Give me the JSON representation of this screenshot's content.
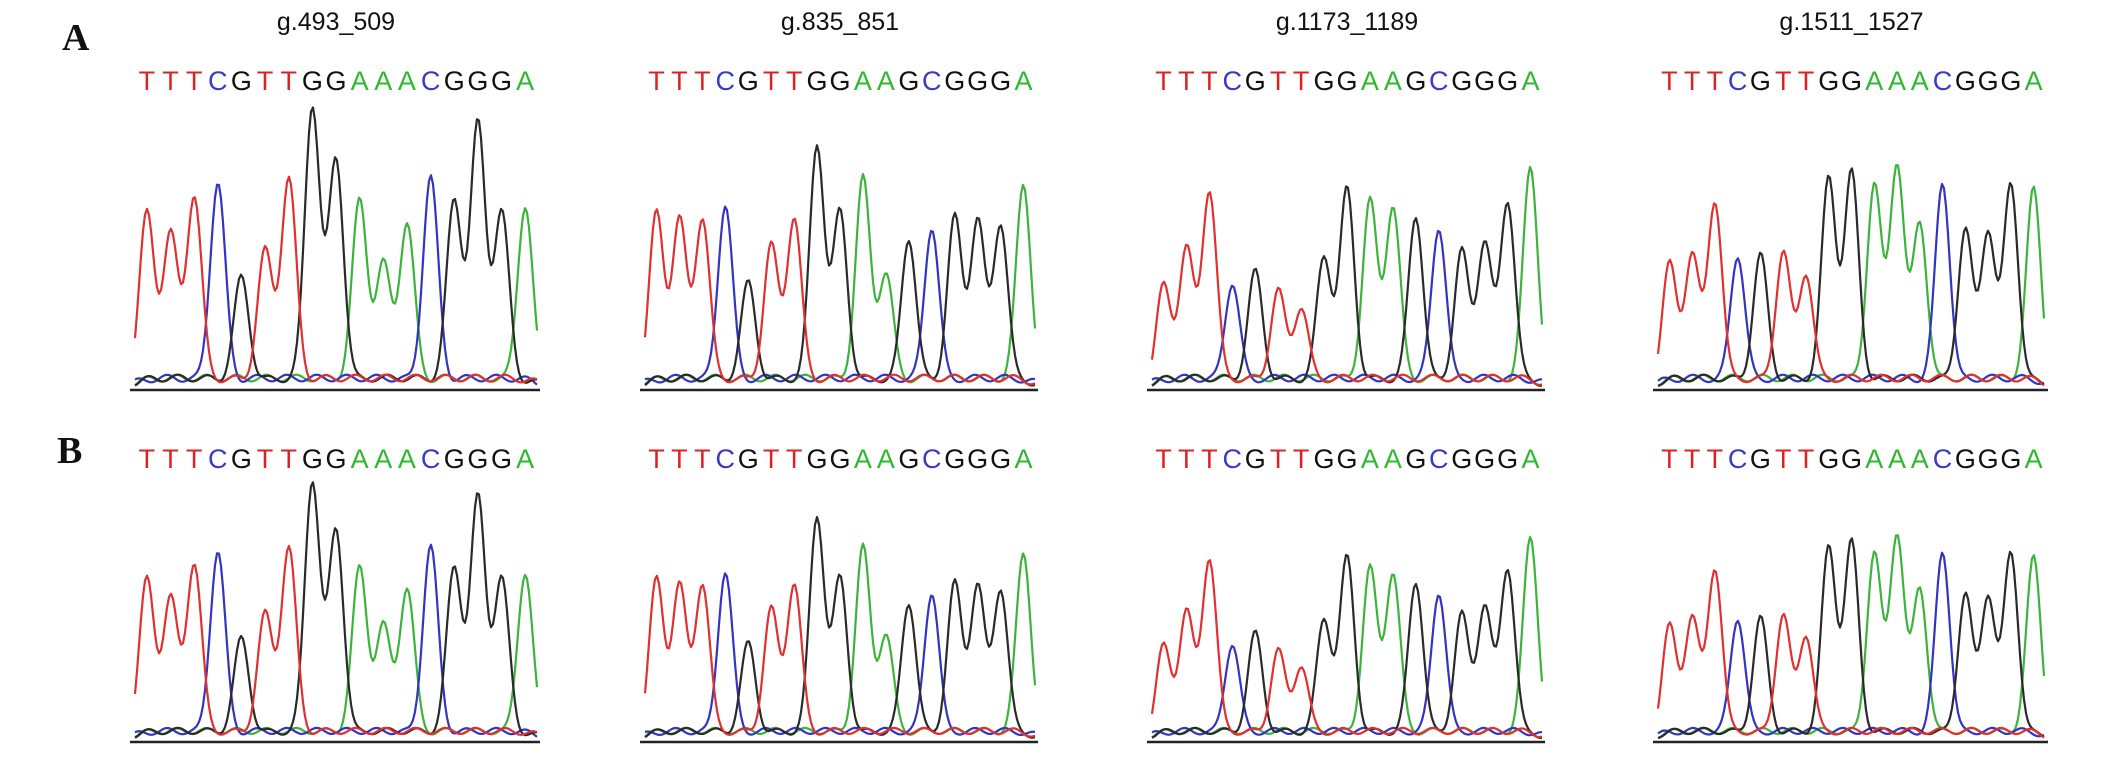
{
  "figure": {
    "panels": [
      {
        "letter": "A",
        "blocks": [
          {
            "title": "g.493_509",
            "sequence": "TTTCGTTGGAAACGGGA"
          },
          {
            "title": "g.835_851",
            "sequence": "TTTCGTTGGAAGCGGGA"
          },
          {
            "title": "g.1173_1189",
            "sequence": "TTTCGTTGGAAGCGGGA"
          },
          {
            "title": "g.1511_1527",
            "sequence": "TTTCGTTGGAAACGGGA"
          }
        ]
      },
      {
        "letter": "B",
        "blocks": [
          {
            "title": "",
            "sequence": "TTTCGTTGGAAACGGGA"
          },
          {
            "title": "",
            "sequence": "TTTCGTTGGAAGCGGGA"
          },
          {
            "title": "",
            "sequence": "TTTCGTTGGAAGCGGGA"
          },
          {
            "title": "",
            "sequence": "TTTCGTTGGAAACGGGA"
          }
        ]
      }
    ],
    "base_colors": {
      "A": "#2eb82e",
      "C": "#3a3ac8",
      "G": "#111111",
      "T": "#e02020"
    },
    "trace_colors": {
      "A": "#3cb43c",
      "C": "#3434c0",
      "G": "#2a2a2a",
      "T": "#e03030"
    }
  }
}
